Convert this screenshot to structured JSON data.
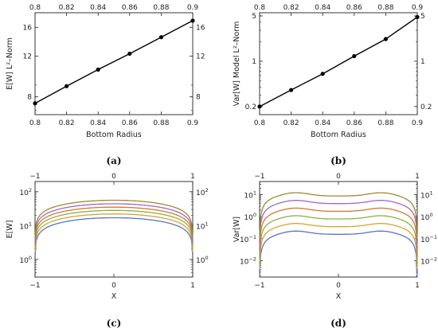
{
  "chart_data": [
    {
      "id": "a",
      "type": "line",
      "caption": "(a)",
      "xlabel": "Bottom Radius",
      "ylabel": "E[W] L²–Norm",
      "y_scale": "log",
      "xlim": [
        0.8,
        0.9
      ],
      "ylim": [
        6.7,
        18.5
      ],
      "x_ticks": [
        "0.8",
        "0.82",
        "0.84",
        "0.86",
        "0.88",
        "0.9"
      ],
      "y_ticks": [
        "8",
        "12",
        "16"
      ],
      "series": [
        {
          "color": "#000000",
          "x": [
            0.8,
            0.82,
            0.84,
            0.86,
            0.88,
            0.9
          ],
          "y": [
            7.5,
            8.9,
            10.5,
            12.3,
            14.5,
            17.1
          ]
        }
      ]
    },
    {
      "id": "b",
      "type": "line",
      "caption": "(b)",
      "xlabel": "Bottom Radius",
      "ylabel": "Var[W] Model L²–Norm",
      "y_scale": "log",
      "xlim": [
        0.8,
        0.9
      ],
      "ylim": [
        0.15,
        5.6
      ],
      "x_ticks": [
        "0.8",
        "0.82",
        "0.84",
        "0.86",
        "0.88",
        "0.9"
      ],
      "y_ticks": [
        "0.2",
        "1",
        "5"
      ],
      "series": [
        {
          "color": "#000000",
          "x": [
            0.8,
            0.82,
            0.84,
            0.86,
            0.88,
            0.9
          ],
          "y": [
            0.2,
            0.36,
            0.64,
            1.2,
            2.2,
            4.8
          ]
        }
      ]
    },
    {
      "id": "c",
      "type": "line",
      "caption": "(c)",
      "xlabel": "X",
      "ylabel": "E[W]",
      "y_scale": "log",
      "xlim": [
        -1,
        1
      ],
      "ylim": [
        0.3,
        200
      ],
      "x_ticks": [
        "−1",
        "0",
        "1"
      ],
      "y_ticks": [
        {
          "base": "10",
          "exp": "0"
        },
        {
          "base": "10",
          "exp": "1"
        },
        {
          "base": "10",
          "exp": "2"
        }
      ],
      "curve_shape": "mound",
      "series": [
        {
          "color": "#5a73c8",
          "peak": 17
        },
        {
          "color": "#d6a437",
          "peak": 22
        },
        {
          "color": "#8db041",
          "peak": 28
        },
        {
          "color": "#d37a2e",
          "peak": 35
        },
        {
          "color": "#a566c4",
          "peak": 44
        },
        {
          "color": "#9e8a2e",
          "peak": 56
        }
      ]
    },
    {
      "id": "d",
      "type": "line",
      "caption": "(d)",
      "xlabel": "X",
      "ylabel": "Var[W]",
      "y_scale": "log",
      "xlim": [
        -1,
        1
      ],
      "ylim": [
        0.0018,
        40
      ],
      "x_ticks": [
        "−1",
        "0",
        "1"
      ],
      "y_ticks": [
        {
          "base": "10",
          "exp": "−2"
        },
        {
          "base": "10",
          "exp": "−1"
        },
        {
          "base": "10",
          "exp": "0"
        },
        {
          "base": "10",
          "exp": "1"
        }
      ],
      "curve_shape": "plateau",
      "series": [
        {
          "color": "#5a73c8",
          "peak": 0.18
        },
        {
          "color": "#d6a437",
          "peak": 0.4
        },
        {
          "color": "#8db041",
          "peak": 0.9
        },
        {
          "color": "#d37a2e",
          "peak": 2.0
        },
        {
          "color": "#a566c4",
          "peak": 4.5
        },
        {
          "color": "#9e8a2e",
          "peak": 10
        }
      ]
    }
  ]
}
